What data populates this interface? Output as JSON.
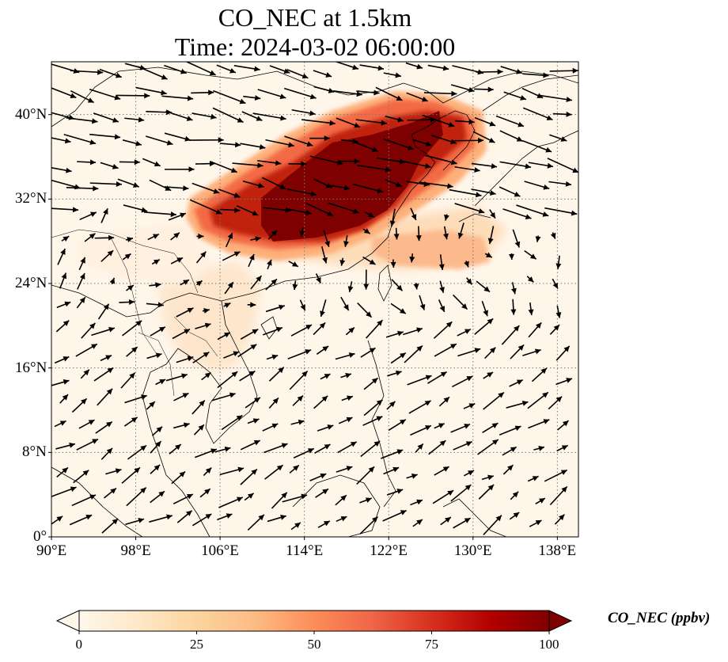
{
  "title": "CO_NEC at 1.5km",
  "subtitle": "Time: 2024-03-02 06:00:00",
  "map": {
    "lon_range": [
      90,
      140
    ],
    "lat_range": [
      0,
      45
    ],
    "lon_ticks": [
      {
        "value": 90,
        "label": "90°E"
      },
      {
        "value": 98,
        "label": "98°E"
      },
      {
        "value": 106,
        "label": "106°E"
      },
      {
        "value": 114,
        "label": "114°E"
      },
      {
        "value": 122,
        "label": "122°E"
      },
      {
        "value": 130,
        "label": "130°E"
      },
      {
        "value": 138,
        "label": "138°E"
      }
    ],
    "lat_ticks": [
      {
        "value": 0,
        "label": "0°"
      },
      {
        "value": 8,
        "label": "8°N"
      },
      {
        "value": 16,
        "label": "16°N"
      },
      {
        "value": 24,
        "label": "24°N"
      },
      {
        "value": 32,
        "label": "32°N"
      },
      {
        "value": 40,
        "label": "40°N"
      }
    ],
    "gridlines": true,
    "background_color": "#fff6ea"
  },
  "colorbar": {
    "label": "CO_NEC (ppbv)",
    "colormap": "OrRd",
    "min": 0,
    "max": 100,
    "ticks": [
      {
        "value": 0,
        "label": "0"
      },
      {
        "value": 25,
        "label": "25"
      },
      {
        "value": 50,
        "label": "50"
      },
      {
        "value": 75,
        "label": "75"
      },
      {
        "value": 100,
        "label": "100"
      }
    ],
    "extend": "both",
    "colors": [
      "#fff7ec",
      "#fee8c8",
      "#fdd49e",
      "#fdbb84",
      "#fc8d59",
      "#ef6548",
      "#d7301f",
      "#b30000",
      "#7f0000"
    ]
  }
}
